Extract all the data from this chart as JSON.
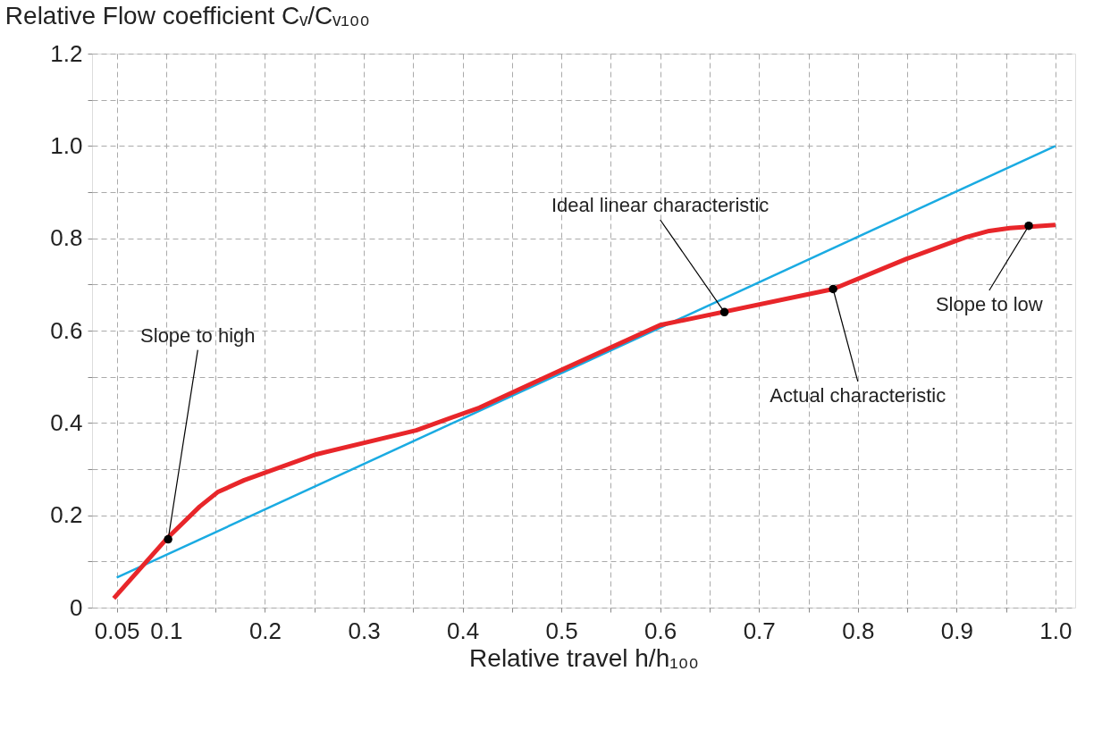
{
  "chart_data": {
    "type": "line",
    "title": "Relative Flow coefficient Cᵥ/Cᵥ₁₀₀",
    "xlabel": "Relative travel h/h₁₀₀",
    "series": [
      {
        "color": "#1aabe2",
        "x": [
          0.05,
          1.0
        ],
        "values": [
          0.065,
          1.0
        ]
      },
      {
        "color": "#e8262a",
        "x": [
          0.047,
          0.1,
          0.134,
          0.152,
          0.179,
          0.252,
          0.353,
          0.417,
          0.5,
          0.6,
          0.775,
          0.85,
          0.909,
          0.933,
          0.954,
          1.0
        ],
        "values": [
          0.02,
          0.148,
          0.219,
          0.25,
          0.276,
          0.332,
          0.384,
          0.433,
          0.515,
          0.612,
          0.69,
          0.756,
          0.802,
          0.816,
          0.822,
          0.829
        ]
      }
    ],
    "annotations": [
      {
        "text": "Slope to high",
        "x": 0.102,
        "y": 0.148
      },
      {
        "text": "Ideal linear characteristic",
        "x": 0.665,
        "y": 0.64
      },
      {
        "text": "Actual characteristic",
        "x": 0.775,
        "y": 0.69
      },
      {
        "text": "Slope to low",
        "x": 0.973,
        "y": 0.827
      }
    ],
    "xlim": [
      0.025,
      1.02
    ],
    "ylim": [
      0,
      1.2
    ],
    "xticks": [
      0.05,
      0.1,
      {
        "value": 0.15,
        "label": null
      },
      0.2,
      {
        "value": 0.25,
        "label": null
      },
      0.3,
      {
        "value": 0.35,
        "label": null
      },
      0.4,
      {
        "value": 0.45,
        "label": null
      },
      0.5,
      {
        "value": 0.55,
        "label": null
      },
      0.6,
      {
        "value": 0.65,
        "label": null
      },
      0.7,
      {
        "value": 0.75,
        "label": null
      },
      0.8,
      {
        "value": 0.85,
        "label": null
      },
      0.9,
      {
        "value": 0.95,
        "label": null
      },
      {
        "value": 1.0,
        "label": "1.0"
      }
    ],
    "yticks": [
      0,
      {
        "value": 0.1,
        "label": null
      },
      {
        "value": 0.2,
        "label": "0.2"
      },
      {
        "value": 0.3,
        "label": null
      },
      {
        "value": 0.4,
        "label": "0.4"
      },
      {
        "value": 0.5,
        "label": null
      },
      {
        "value": 0.6,
        "label": "0.6"
      },
      {
        "value": 0.7,
        "label": null
      },
      {
        "value": 0.8,
        "label": "0.8"
      },
      {
        "value": 0.9,
        "label": null
      },
      {
        "value": 1.0,
        "label": "1.0"
      },
      {
        "value": 1.1,
        "label": null
      },
      {
        "value": 1.2,
        "label": "1.2"
      }
    ],
    "grid": true,
    "line_style": "solid",
    "marker": "none"
  }
}
